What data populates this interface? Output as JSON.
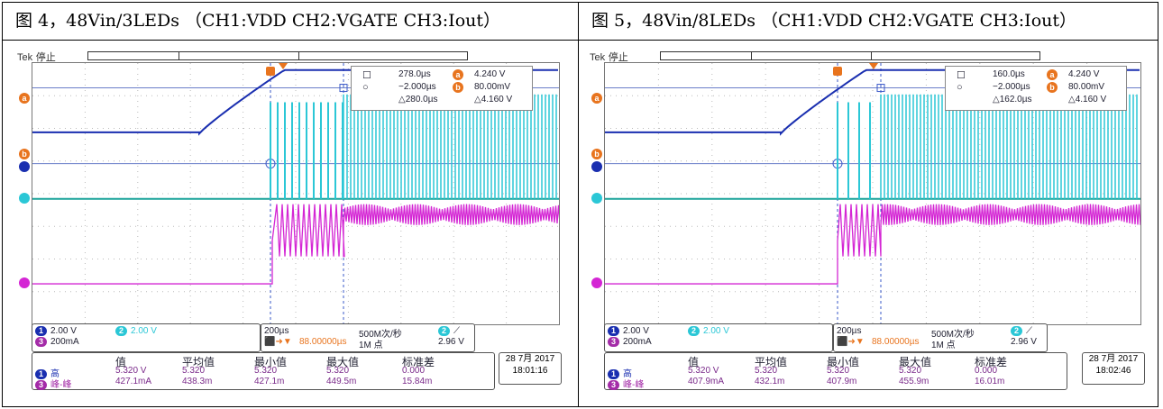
{
  "figures": [
    {
      "caption": "图 4，48Vin/3LEDs （CH1:VDD   CH2:VGATE   CH3:Iout）",
      "tek": "Tek",
      "status": "停止",
      "cursor": {
        "row1_time": "278.0µs",
        "row1_volt": "4.240 V",
        "row2_time": "−2.000µs",
        "row2_volt": "80.00mV",
        "delta_time": "△280.0µs",
        "delta_volt": "△4.160 V"
      },
      "channels": {
        "ch1_scale": "2.00 V",
        "ch2_scale": "2.00 V",
        "ch3_scale": "200mA"
      },
      "timebase": {
        "scale": "200µs",
        "sample_rate": "500M次/秒",
        "trigger_delay": "88.00000µs",
        "record_length": "1M 点",
        "trigger_level": "2.96 V"
      },
      "stats_headers": [
        "值",
        "平均值",
        "最小值",
        "最大值",
        "标准差"
      ],
      "stats_rows": [
        {
          "ch": "1",
          "label": "高",
          "values": [
            "5.320 V",
            "5.320",
            "5.320",
            "5.320",
            "0.000"
          ]
        },
        {
          "ch": "3",
          "label": "峰-峰",
          "values": [
            "427.1mA",
            "438.3m",
            "427.1m",
            "449.5m",
            "15.84m"
          ]
        }
      ],
      "date": "28 7月 2017",
      "time": "18:01:16"
    },
    {
      "caption": "图 5，48Vin/8LEDs （CH1:VDD   CH2:VGATE   CH3:Iout）",
      "tek": "Tek",
      "status": "停止",
      "cursor": {
        "row1_time": "160.0µs",
        "row1_volt": "4.240 V",
        "row2_time": "−2.000µs",
        "row2_volt": "80.00mV",
        "delta_time": "△162.0µs",
        "delta_volt": "△4.160 V"
      },
      "channels": {
        "ch1_scale": "2.00 V",
        "ch2_scale": "2.00 V",
        "ch3_scale": "200mA"
      },
      "timebase": {
        "scale": "200µs",
        "sample_rate": "500M次/秒",
        "trigger_delay": "88.00000µs",
        "record_length": "1M 点",
        "trigger_level": "2.96 V"
      },
      "stats_headers": [
        "值",
        "平均值",
        "最小值",
        "最大值",
        "标准差"
      ],
      "stats_rows": [
        {
          "ch": "1",
          "label": "高",
          "values": [
            "5.320 V",
            "5.320",
            "5.320",
            "5.320",
            "0.000"
          ]
        },
        {
          "ch": "3",
          "label": "峰-峰",
          "values": [
            "407.9mA",
            "432.1m",
            "407.9m",
            "455.9m",
            "16.01m"
          ]
        }
      ],
      "date": "28 7月 2017",
      "time": "18:02:46"
    }
  ],
  "colors": {
    "ch1": "#1a2fb0",
    "ch2": "#2bc7d6",
    "ch3": "#d426d4",
    "cursor": "#e8741e"
  }
}
